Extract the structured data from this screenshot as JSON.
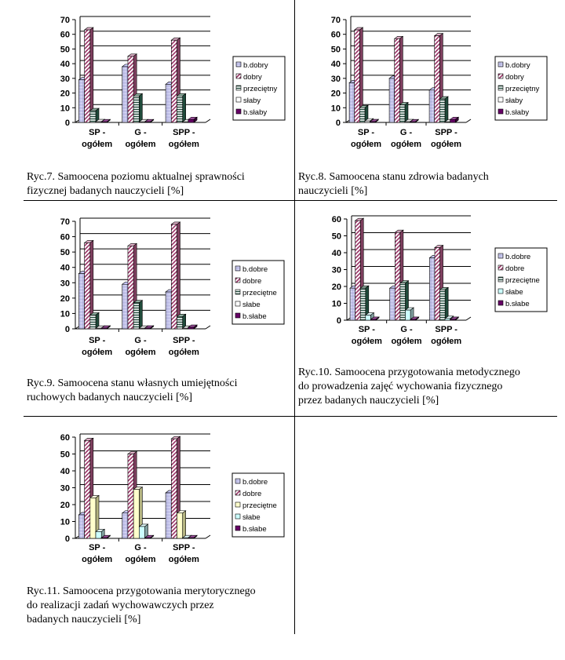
{
  "chart_data": [
    {
      "type": "bar",
      "categories": [
        "SP -\nogółem",
        "G -\nogółem",
        "SPP -\nogółem"
      ],
      "ylim": [
        0,
        70
      ],
      "yticks": [
        0,
        10,
        20,
        30,
        40,
        50,
        60,
        70
      ],
      "series": [
        {
          "name": "b.dobry",
          "values": [
            29,
            38,
            26
          ]
        },
        {
          "name": "dobry",
          "values": [
            63,
            45,
            56
          ]
        },
        {
          "name": "przeciętny",
          "values": [
            8,
            18,
            18
          ]
        },
        {
          "name": "słaby",
          "values": [
            0.5,
            0,
            0
          ]
        },
        {
          "name": "b.słaby",
          "values": [
            0,
            0,
            2
          ]
        }
      ],
      "caption": "Ryc.7. Samoocena poziomu aktualnej sprawności\nfizycznej badanych nauczycieli [%]",
      "legend": "right",
      "grid": true
    },
    {
      "type": "bar",
      "categories": [
        "SP -\nogółem",
        "G -\nogółem",
        "SPP -\nogółem"
      ],
      "ylim": [
        0,
        70
      ],
      "yticks": [
        0,
        10,
        20,
        30,
        40,
        50,
        60,
        70
      ],
      "series": [
        {
          "name": "b.dobry",
          "values": [
            27,
            30,
            22
          ]
        },
        {
          "name": "dobry",
          "values": [
            63,
            57,
            59
          ]
        },
        {
          "name": "przeciętny",
          "values": [
            10,
            12,
            16
          ]
        },
        {
          "name": "słaby",
          "values": [
            1,
            0.5,
            0
          ]
        },
        {
          "name": "b.słaby",
          "values": [
            0.5,
            0,
            2
          ]
        }
      ],
      "caption": "Ryc.8. Samoocena stanu zdrowia badanych\nnauczycieli [%]",
      "legend": "right",
      "grid": true
    },
    {
      "type": "bar",
      "categories": [
        "SP -\nogółem",
        "G -\nogółem",
        "SPP -\nogółem"
      ],
      "ylim": [
        0,
        70
      ],
      "yticks": [
        0,
        10,
        20,
        30,
        40,
        50,
        60,
        70
      ],
      "series": [
        {
          "name": "b.dobre",
          "values": [
            36,
            29,
            24
          ]
        },
        {
          "name": "dobre",
          "values": [
            56,
            54,
            68
          ]
        },
        {
          "name": "przeciętne",
          "values": [
            9,
            17,
            8
          ]
        },
        {
          "name": "słabe",
          "values": [
            0,
            0,
            0
          ]
        },
        {
          "name": "b.słabe",
          "values": [
            0.5,
            0.5,
            1
          ]
        }
      ],
      "caption": "Ryc.9. Samoocena stanu własnych umiejętności\nruchowych badanych nauczycieli [%]",
      "legend": "right",
      "grid": true
    },
    {
      "type": "bar",
      "categories": [
        "SP -\nogółem",
        "G -\nogółem",
        "SPP -\nogółem"
      ],
      "ylim": [
        0,
        60
      ],
      "yticks": [
        0,
        10,
        20,
        30,
        40,
        50,
        60
      ],
      "series": [
        {
          "name": "b.dobre",
          "values": [
            19,
            19,
            37
          ]
        },
        {
          "name": "dobre",
          "values": [
            59,
            52,
            43
          ]
        },
        {
          "name": "przeciętne",
          "values": [
            19,
            22,
            18
          ]
        },
        {
          "name": "słabe",
          "values": [
            3,
            6,
            1
          ]
        },
        {
          "name": "b.słabe",
          "values": [
            0.5,
            0.5,
            0.5
          ]
        }
      ],
      "caption": "Ryc.10. Samoocena przygotowania metodycznego\ndo prowadzenia zajęć wychowania fizycznego\nprzez badanych nauczycieli [%]",
      "legend": "right",
      "grid": true
    },
    {
      "type": "bar",
      "categories": [
        "SP -\nogółem",
        "G -\nogółem",
        "SPP -\nogółem"
      ],
      "ylim": [
        0,
        60
      ],
      "yticks": [
        0,
        10,
        20,
        30,
        40,
        50,
        60
      ],
      "series": [
        {
          "name": "b.dobre",
          "values": [
            14,
            15,
            27
          ]
        },
        {
          "name": "dobre",
          "values": [
            58,
            50,
            59
          ]
        },
        {
          "name": "przeciętne",
          "values": [
            24,
            29,
            15
          ]
        },
        {
          "name": "słabe",
          "values": [
            4,
            7,
            0
          ]
        },
        {
          "name": "b.słabe",
          "values": [
            0,
            0,
            0
          ]
        }
      ],
      "caption": "Ryc.11. Samoocena przygotowania merytorycznego\ndo realizacji zadań wychowawczych przez\nbadanych nauczycieli [%]",
      "legend": "right",
      "grid": true
    }
  ]
}
